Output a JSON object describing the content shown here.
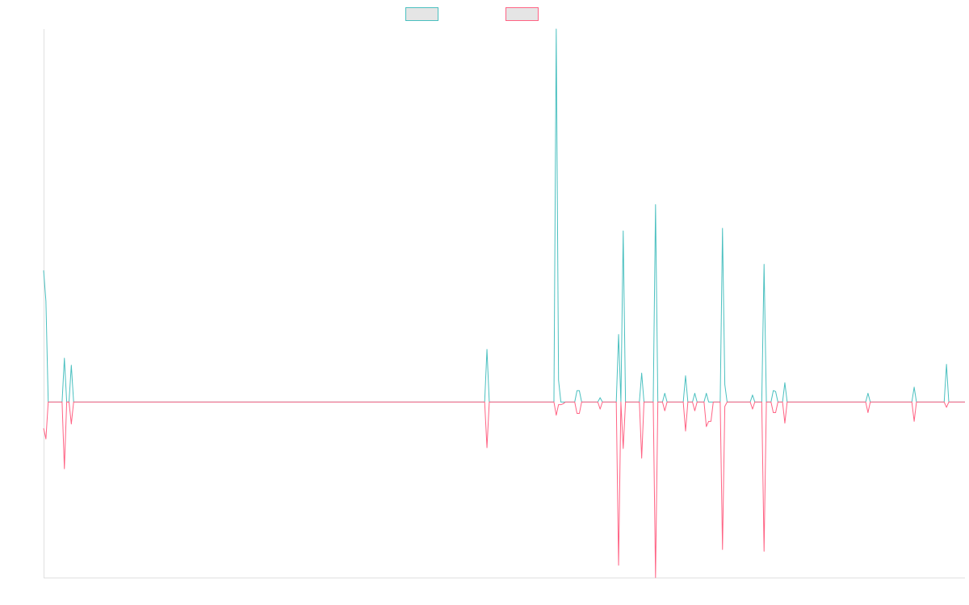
{
  "chart_data": {
    "type": "line",
    "title": "",
    "xlabel": "",
    "ylabel": "",
    "x_count": 400,
    "x_range": [
      0,
      399
    ],
    "ylim": [
      -200,
      425
    ],
    "grid": false,
    "legend": {
      "placement": "top-center"
    },
    "series": [
      {
        "name": "",
        "color": "#4bc0c0",
        "fill": "#e5e5e5",
        "points": [
          [
            0,
            150
          ],
          [
            1,
            115
          ],
          [
            2,
            0
          ],
          [
            8,
            0
          ],
          [
            9,
            50
          ],
          [
            10,
            0
          ],
          [
            11,
            0
          ],
          [
            12,
            42
          ],
          [
            13,
            0
          ],
          [
            191,
            0
          ],
          [
            192,
            60
          ],
          [
            193,
            0
          ],
          [
            221,
            0
          ],
          [
            222,
            425
          ],
          [
            223,
            25
          ],
          [
            224,
            0
          ],
          [
            230,
            0
          ],
          [
            231,
            13
          ],
          [
            232,
            13
          ],
          [
            233,
            0
          ],
          [
            240,
            0
          ],
          [
            241,
            5
          ],
          [
            242,
            0
          ],
          [
            248,
            0
          ],
          [
            249,
            77
          ],
          [
            250,
            0
          ],
          [
            251,
            195
          ],
          [
            252,
            0
          ],
          [
            258,
            0
          ],
          [
            259,
            33
          ],
          [
            260,
            0
          ],
          [
            264,
            0
          ],
          [
            265,
            225
          ],
          [
            266,
            0
          ],
          [
            268,
            0
          ],
          [
            269,
            10
          ],
          [
            270,
            0
          ],
          [
            277,
            0
          ],
          [
            278,
            30
          ],
          [
            279,
            0
          ],
          [
            281,
            0
          ],
          [
            282,
            10
          ],
          [
            283,
            0
          ],
          [
            286,
            0
          ],
          [
            287,
            10
          ],
          [
            288,
            0
          ],
          [
            293,
            0
          ],
          [
            294,
            198
          ],
          [
            295,
            20
          ],
          [
            296,
            0
          ],
          [
            306,
            0
          ],
          [
            307,
            8
          ],
          [
            308,
            0
          ],
          [
            311,
            0
          ],
          [
            312,
            157
          ],
          [
            313,
            0
          ],
          [
            315,
            0
          ],
          [
            316,
            13
          ],
          [
            317,
            12
          ],
          [
            318,
            0
          ],
          [
            320,
            0
          ],
          [
            321,
            22
          ],
          [
            322,
            0
          ],
          [
            356,
            0
          ],
          [
            357,
            10
          ],
          [
            358,
            0
          ],
          [
            376,
            0
          ],
          [
            377,
            17
          ],
          [
            378,
            0
          ],
          [
            390,
            0
          ],
          [
            391,
            43
          ],
          [
            392,
            0
          ],
          [
            399,
            0
          ]
        ]
      },
      {
        "name": "",
        "color": "#ff6384",
        "fill": "#e5e5e5",
        "points": [
          [
            0,
            -30
          ],
          [
            1,
            -42
          ],
          [
            2,
            0
          ],
          [
            8,
            0
          ],
          [
            9,
            -76
          ],
          [
            10,
            0
          ],
          [
            11,
            0
          ],
          [
            12,
            -25
          ],
          [
            13,
            0
          ],
          [
            191,
            0
          ],
          [
            192,
            -52
          ],
          [
            193,
            0
          ],
          [
            221,
            0
          ],
          [
            222,
            -15
          ],
          [
            223,
            -3
          ],
          [
            224,
            -3
          ],
          [
            225,
            -2
          ],
          [
            230,
            0
          ],
          [
            231,
            -13
          ],
          [
            232,
            -13
          ],
          [
            233,
            0
          ],
          [
            240,
            0
          ],
          [
            241,
            -8
          ],
          [
            242,
            0
          ],
          [
            248,
            0
          ],
          [
            249,
            -186
          ],
          [
            250,
            0
          ],
          [
            251,
            -53
          ],
          [
            252,
            0
          ],
          [
            258,
            0
          ],
          [
            259,
            -64
          ],
          [
            260,
            0
          ],
          [
            264,
            0
          ],
          [
            265,
            -200
          ],
          [
            266,
            0
          ],
          [
            268,
            0
          ],
          [
            269,
            -10
          ],
          [
            270,
            0
          ],
          [
            277,
            0
          ],
          [
            278,
            -33
          ],
          [
            279,
            0
          ],
          [
            281,
            0
          ],
          [
            282,
            -10
          ],
          [
            283,
            0
          ],
          [
            286,
            0
          ],
          [
            287,
            -28
          ],
          [
            288,
            -22
          ],
          [
            289,
            -22
          ],
          [
            290,
            0
          ],
          [
            293,
            0
          ],
          [
            294,
            -168
          ],
          [
            295,
            -5
          ],
          [
            296,
            0
          ],
          [
            306,
            0
          ],
          [
            307,
            -8
          ],
          [
            308,
            0
          ],
          [
            311,
            0
          ],
          [
            312,
            -170
          ],
          [
            313,
            0
          ],
          [
            315,
            0
          ],
          [
            316,
            -12
          ],
          [
            317,
            -12
          ],
          [
            318,
            0
          ],
          [
            320,
            0
          ],
          [
            321,
            -24
          ],
          [
            322,
            0
          ],
          [
            356,
            0
          ],
          [
            357,
            -12
          ],
          [
            358,
            0
          ],
          [
            376,
            0
          ],
          [
            377,
            -22
          ],
          [
            378,
            0
          ],
          [
            390,
            0
          ],
          [
            391,
            -6
          ],
          [
            392,
            0
          ],
          [
            399,
            0
          ]
        ]
      }
    ]
  }
}
